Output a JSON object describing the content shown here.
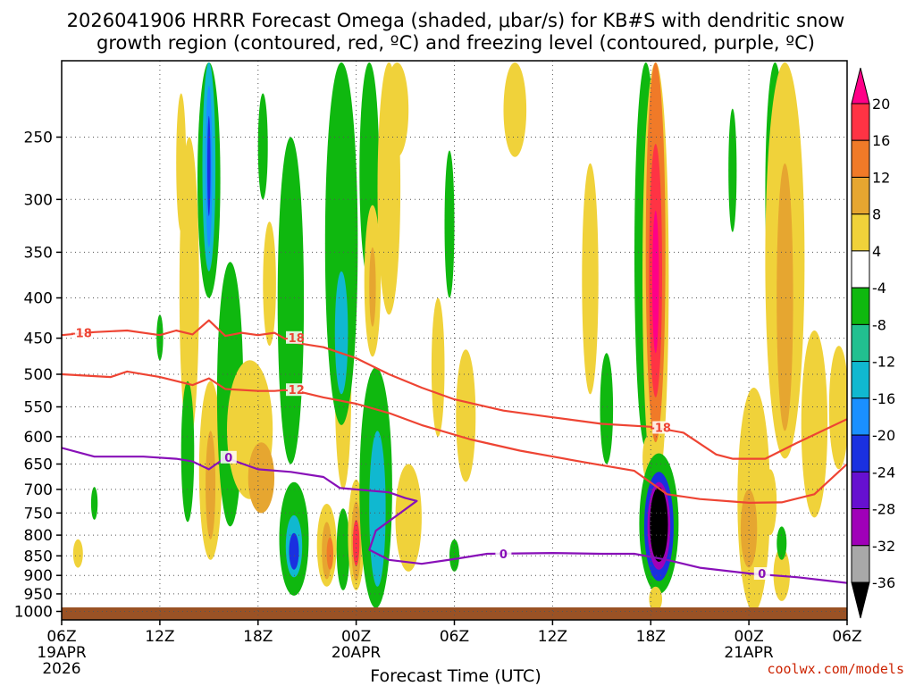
{
  "chart_data": {
    "type": "heatmap",
    "title_line1": "2026041906 HRRR Forecast Omega (shaded, μbar/s) for KB#S with dendritic snow",
    "title_line2": "growth region (contoured, red, ºC) and freezing level (contoured, purple, ºC)",
    "xlabel": "Forecast Time (UTC)",
    "credit": "coolwx.com/models",
    "x_ticks": [
      {
        "h": 0,
        "label": "06Z",
        "date": "19APR",
        "year": "2026"
      },
      {
        "h": 6,
        "label": "12Z"
      },
      {
        "h": 12,
        "label": "18Z"
      },
      {
        "h": 18,
        "label": "00Z",
        "date": "20APR"
      },
      {
        "h": 24,
        "label": "06Z"
      },
      {
        "h": 30,
        "label": "12Z"
      },
      {
        "h": 36,
        "label": "18Z"
      },
      {
        "h": 42,
        "label": "00Z",
        "date": "21APR"
      },
      {
        "h": 48,
        "label": "06Z"
      }
    ],
    "xlim": [
      0,
      48
    ],
    "y_ticks": [
      250,
      300,
      350,
      400,
      450,
      500,
      550,
      600,
      650,
      700,
      750,
      800,
      850,
      900,
      950,
      1000
    ],
    "ylim_hpa": [
      200,
      1025
    ],
    "colorbar": {
      "ticks": [
        "20",
        "16",
        "12",
        "8",
        "4",
        "-4",
        "-8",
        "-12",
        "-16",
        "-20",
        "-24",
        "-28",
        "-32",
        "-36"
      ],
      "colors": [
        "#ff0088",
        "#ff3344",
        "#f07a28",
        "#e6a630",
        "#f0d23a",
        "#ffffff",
        "#0fb80f",
        "#22c090",
        "#10b8d0",
        "#1a90ff",
        "#1a30e0",
        "#6610d0",
        "#a000b8",
        "#a8a8a8",
        "#000000"
      ]
    },
    "shading": [
      {
        "h": 1.0,
        "p": 845,
        "rh": 0.3,
        "rp": 35,
        "v": 5
      },
      {
        "h": 2.0,
        "p": 730,
        "rh": 0.2,
        "rp": 35,
        "v": -6
      },
      {
        "h": 6.0,
        "p": 450,
        "rh": 0.2,
        "rp": 30,
        "v": -6
      },
      {
        "h": 7.3,
        "p": 275,
        "rh": 0.3,
        "rp": 55,
        "v": 5
      },
      {
        "h": 7.8,
        "p": 430,
        "rh": 0.6,
        "rp": 180,
        "v": 5
      },
      {
        "h": 7.7,
        "p": 640,
        "rh": 0.4,
        "rp": 130,
        "v": -6
      },
      {
        "h": 9.0,
        "p": 285,
        "rh": 0.7,
        "rp": 115,
        "v": -6
      },
      {
        "h": 9.0,
        "p": 280,
        "rh": 0.4,
        "rp": 90,
        "v": -12
      },
      {
        "h": 9.0,
        "p": 280,
        "rh": 0.2,
        "rp": 65,
        "v": -16
      },
      {
        "h": 9.0,
        "p": 275,
        "rh": 0.1,
        "rp": 40,
        "v": -20
      },
      {
        "h": 9.1,
        "p": 685,
        "rh": 0.7,
        "rp": 175,
        "v": 5
      },
      {
        "h": 9.1,
        "p": 700,
        "rh": 0.3,
        "rp": 110,
        "v": 9
      },
      {
        "h": 10.3,
        "p": 570,
        "rh": 0.8,
        "rp": 210,
        "v": -6
      },
      {
        "h": 11.5,
        "p": 600,
        "rh": 1.4,
        "rp": 120,
        "v": 5
      },
      {
        "h": 12.2,
        "p": 680,
        "rh": 0.8,
        "rp": 70,
        "v": 9
      },
      {
        "h": 12.3,
        "p": 260,
        "rh": 0.3,
        "rp": 40,
        "v": -6
      },
      {
        "h": 14.0,
        "p": 450,
        "rh": 0.8,
        "rp": 200,
        "v": -6
      },
      {
        "h": 14.2,
        "p": 820,
        "rh": 0.9,
        "rp": 135,
        "v": -6
      },
      {
        "h": 14.2,
        "p": 830,
        "rh": 0.5,
        "rp": 75,
        "v": -12
      },
      {
        "h": 14.2,
        "p": 840,
        "rh": 0.3,
        "rp": 45,
        "v": -20
      },
      {
        "h": 12.7,
        "p": 390,
        "rh": 0.4,
        "rp": 70,
        "v": 5
      },
      {
        "h": 16.2,
        "p": 830,
        "rh": 0.6,
        "rp": 100,
        "v": 5
      },
      {
        "h": 16.2,
        "p": 840,
        "rh": 0.3,
        "rp": 70,
        "v": 10
      },
      {
        "h": 16.4,
        "p": 845,
        "rh": 0.2,
        "rp": 40,
        "v": 14
      },
      {
        "h": 17.2,
        "p": 840,
        "rh": 0.4,
        "rp": 100,
        "v": -6
      },
      {
        "h": 17.2,
        "p": 540,
        "rh": 0.5,
        "rp": 160,
        "v": 5
      },
      {
        "h": 17.1,
        "p": 360,
        "rh": 1.0,
        "rp": 220,
        "v": -6
      },
      {
        "h": 17.1,
        "p": 450,
        "rh": 0.4,
        "rp": 80,
        "v": -12
      },
      {
        "h": 18.0,
        "p": 810,
        "rh": 0.5,
        "rp": 130,
        "v": 5
      },
      {
        "h": 18.0,
        "p": 820,
        "rh": 0.3,
        "rp": 95,
        "v": 9
      },
      {
        "h": 18.0,
        "p": 820,
        "rh": 0.2,
        "rp": 55,
        "v": 18
      },
      {
        "h": 18.8,
        "p": 270,
        "rh": 0.6,
        "rp": 110,
        "v": -6
      },
      {
        "h": 19.0,
        "p": 390,
        "rh": 0.5,
        "rp": 85,
        "v": 5
      },
      {
        "h": 19.0,
        "p": 390,
        "rh": 0.2,
        "rp": 45,
        "v": 9
      },
      {
        "h": 19.2,
        "p": 740,
        "rh": 1.0,
        "rp": 250,
        "v": -6
      },
      {
        "h": 19.3,
        "p": 760,
        "rh": 0.5,
        "rp": 170,
        "v": -12
      },
      {
        "h": 20.0,
        "p": 270,
        "rh": 0.7,
        "rp": 150,
        "v": 5
      },
      {
        "h": 20.5,
        "p": 215,
        "rh": 0.7,
        "rp": 50,
        "v": 5
      },
      {
        "h": 21.2,
        "p": 770,
        "rh": 0.8,
        "rp": 120,
        "v": 5
      },
      {
        "h": 23.7,
        "p": 330,
        "rh": 0.3,
        "rp": 70,
        "v": -6
      },
      {
        "h": 23.0,
        "p": 500,
        "rh": 0.4,
        "rp": 100,
        "v": 5
      },
      {
        "h": 24.0,
        "p": 850,
        "rh": 0.3,
        "rp": 40,
        "v": -6
      },
      {
        "h": 24.7,
        "p": 575,
        "rh": 0.6,
        "rp": 110,
        "v": 5
      },
      {
        "h": 27.7,
        "p": 205,
        "rh": 0.7,
        "rp": 60,
        "v": 5
      },
      {
        "h": 32.3,
        "p": 400,
        "rh": 0.5,
        "rp": 130,
        "v": 5
      },
      {
        "h": 33.3,
        "p": 560,
        "rh": 0.4,
        "rp": 90,
        "v": -6
      },
      {
        "h": 35.7,
        "p": 350,
        "rh": 0.7,
        "rp": 270,
        "v": -6
      },
      {
        "h": 36.3,
        "p": 410,
        "rh": 0.8,
        "rp": 300,
        "v": 5
      },
      {
        "h": 36.3,
        "p": 400,
        "rh": 0.6,
        "rp": 210,
        "v": 12
      },
      {
        "h": 36.3,
        "p": 395,
        "rh": 0.4,
        "rp": 140,
        "v": 16
      },
      {
        "h": 36.3,
        "p": 390,
        "rh": 0.2,
        "rp": 80,
        "v": 20
      },
      {
        "h": 35.8,
        "p": 640,
        "rh": 0.3,
        "rp": 40,
        "v": 5
      },
      {
        "h": 36.5,
        "p": 790,
        "rh": 1.2,
        "rp": 160,
        "v": -6
      },
      {
        "h": 36.5,
        "p": 790,
        "rh": 0.9,
        "rp": 125,
        "v": -20
      },
      {
        "h": 36.5,
        "p": 785,
        "rh": 0.7,
        "rp": 100,
        "v": -28
      },
      {
        "h": 36.5,
        "p": 780,
        "rh": 0.55,
        "rp": 85,
        "v": -36
      },
      {
        "h": 36.3,
        "p": 965,
        "rh": 0.4,
        "rp": 35,
        "v": 5
      },
      {
        "h": 41.0,
        "p": 280,
        "rh": 0.25,
        "rp": 50,
        "v": -6
      },
      {
        "h": 42.3,
        "p": 760,
        "rh": 1.0,
        "rp": 240,
        "v": 5
      },
      {
        "h": 42.0,
        "p": 790,
        "rh": 0.5,
        "rp": 90,
        "v": 9
      },
      {
        "h": 43.6,
        "p": 290,
        "rh": 0.6,
        "rp": 140,
        "v": -6
      },
      {
        "h": 44.2,
        "p": 420,
        "rh": 1.2,
        "rp": 220,
        "v": 5
      },
      {
        "h": 44.2,
        "p": 430,
        "rh": 0.5,
        "rp": 160,
        "v": 9
      },
      {
        "h": 43.3,
        "p": 730,
        "rh": 0.4,
        "rp": 70,
        "v": 5
      },
      {
        "h": 44.0,
        "p": 900,
        "rh": 0.5,
        "rp": 70,
        "v": 5
      },
      {
        "h": 44.0,
        "p": 820,
        "rh": 0.3,
        "rp": 40,
        "v": -6
      },
      {
        "h": 46.0,
        "p": 600,
        "rh": 0.8,
        "rp": 160,
        "v": 5
      },
      {
        "h": 47.5,
        "p": 560,
        "rh": 0.6,
        "rp": 100,
        "v": 5
      }
    ],
    "contours": [
      {
        "name": "-18",
        "color": "#ee4433",
        "points": [
          [
            0,
            446
          ],
          [
            2,
            442
          ],
          [
            4,
            440
          ],
          [
            6,
            446
          ],
          [
            7,
            440
          ],
          [
            8,
            445
          ],
          [
            9,
            427
          ],
          [
            10,
            447
          ],
          [
            11,
            443
          ],
          [
            12,
            446
          ],
          [
            13,
            443
          ],
          [
            14,
            455
          ],
          [
            16,
            462
          ],
          [
            18,
            477
          ],
          [
            20,
            500
          ],
          [
            22,
            520
          ],
          [
            24,
            538
          ],
          [
            27,
            556
          ],
          [
            30,
            567
          ],
          [
            33,
            578
          ],
          [
            36,
            583
          ],
          [
            38,
            593
          ],
          [
            40,
            632
          ],
          [
            41,
            640
          ],
          [
            43,
            640
          ],
          [
            45,
            610
          ],
          [
            48,
            570
          ]
        ],
        "labels": [
          [
            1.2,
            443
          ],
          [
            14.2,
            449
          ],
          [
            36.6,
            584
          ]
        ]
      },
      {
        "name": "-12",
        "color": "#ee4433",
        "points": [
          [
            0,
            500
          ],
          [
            3,
            504
          ],
          [
            4,
            496
          ],
          [
            6,
            504
          ],
          [
            8,
            516
          ],
          [
            9,
            506
          ],
          [
            10,
            522
          ],
          [
            12,
            525
          ],
          [
            13,
            525
          ],
          [
            14,
            523
          ],
          [
            16,
            535
          ],
          [
            18,
            545
          ],
          [
            20,
            560
          ],
          [
            22,
            580
          ],
          [
            25,
            605
          ],
          [
            28,
            625
          ],
          [
            32,
            647
          ],
          [
            35,
            663
          ],
          [
            37,
            710
          ],
          [
            39,
            720
          ],
          [
            42,
            728
          ],
          [
            44,
            727
          ],
          [
            46,
            710
          ],
          [
            48,
            650
          ]
        ],
        "labels": [
          [
            14.2,
            523
          ]
        ]
      },
      {
        "name": "0",
        "color": "#8810b8",
        "points": [
          [
            0,
            620
          ],
          [
            2,
            636
          ],
          [
            5,
            636
          ],
          [
            7,
            640
          ],
          [
            8,
            645
          ],
          [
            9,
            660
          ],
          [
            10,
            638
          ],
          [
            12,
            660
          ],
          [
            14,
            665
          ],
          [
            16,
            675
          ],
          [
            17,
            697
          ],
          [
            20,
            706
          ],
          [
            21,
            718
          ],
          [
            21.7,
            724
          ],
          [
            20.5,
            755
          ],
          [
            19.2,
            790
          ],
          [
            18.8,
            835
          ],
          [
            20,
            860
          ],
          [
            22,
            870
          ],
          [
            24,
            858
          ],
          [
            26,
            845
          ],
          [
            30,
            843
          ],
          [
            33,
            845
          ],
          [
            35,
            845
          ],
          [
            37,
            860
          ],
          [
            39,
            880
          ],
          [
            42,
            895
          ],
          [
            45,
            905
          ],
          [
            48,
            920
          ]
        ],
        "labels": [
          [
            10.2,
            637
          ],
          [
            27.0,
            845
          ],
          [
            42.8,
            895
          ]
        ]
      }
    ]
  }
}
